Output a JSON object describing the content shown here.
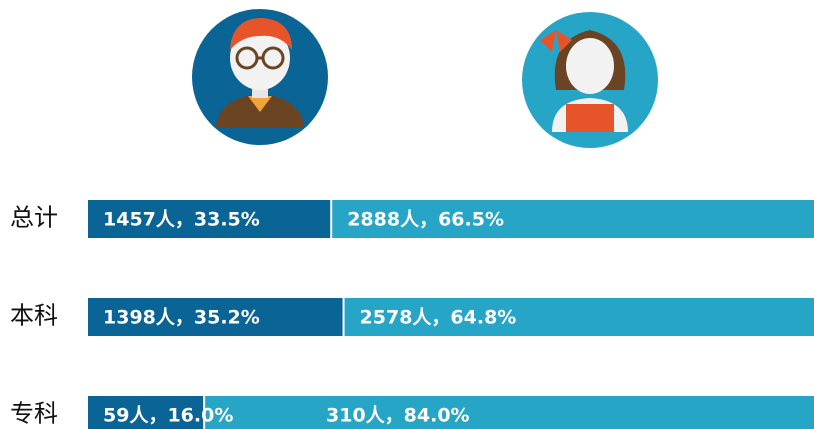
{
  "chart_data": {
    "type": "bar",
    "orientation": "horizontal",
    "stacked": true,
    "categories": [
      "总计",
      "本科",
      "专科"
    ],
    "series": [
      {
        "color": "#0a6496",
        "values": [
          33.5,
          35.2,
          16.0
        ],
        "value_labels": [
          "1457人，33.5%",
          "1398人，35.2%",
          "59人，16.0%"
        ]
      },
      {
        "color": "#27a5c7",
        "values": [
          66.5,
          64.8,
          84.0
        ],
        "value_labels": [
          "2888人，66.5%",
          "2578人，64.8%",
          "310人，84.0%"
        ]
      }
    ],
    "xlim": [
      0,
      100
    ]
  }
}
